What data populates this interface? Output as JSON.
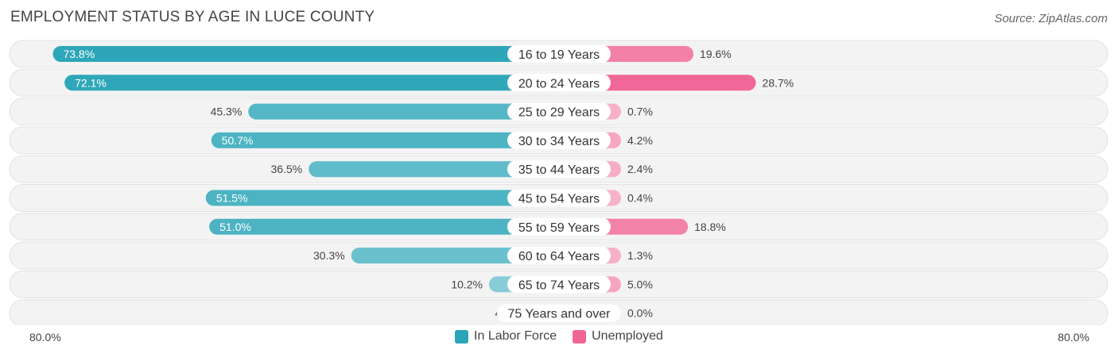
{
  "header": {
    "title": "EMPLOYMENT STATUS BY AGE IN LUCE COUNTY",
    "source": "Source: ZipAtlas.com"
  },
  "axis": {
    "left_label": "80.0%",
    "right_label": "80.0%"
  },
  "legend": {
    "items": [
      {
        "label": "In Labor Force",
        "color": "#2ba5b8"
      },
      {
        "label": "Unemployed",
        "color": "#f06595"
      }
    ]
  },
  "chart_data": {
    "type": "bar",
    "orientation": "diverging-horizontal",
    "title": "EMPLOYMENT STATUS BY AGE IN LUCE COUNTY",
    "xlim": [
      -80,
      80
    ],
    "categories": [
      "16 to 19 Years",
      "20 to 24 Years",
      "25 to 29 Years",
      "30 to 34 Years",
      "35 to 44 Years",
      "45 to 54 Years",
      "55 to 59 Years",
      "60 to 64 Years",
      "65 to 74 Years",
      "75 Years and over"
    ],
    "series": [
      {
        "name": "In Labor Force",
        "side": "left",
        "color": "#2ba5b8",
        "values": [
          73.8,
          72.1,
          45.3,
          50.7,
          36.5,
          51.5,
          51.0,
          30.3,
          10.2,
          4.7
        ],
        "labels": [
          "73.8%",
          "72.1%",
          "45.3%",
          "50.7%",
          "36.5%",
          "51.5%",
          "51.0%",
          "30.3%",
          "10.2%",
          "4.7%"
        ]
      },
      {
        "name": "Unemployed",
        "side": "right",
        "color": "#f06595",
        "values": [
          19.6,
          28.7,
          0.7,
          4.2,
          2.4,
          0.4,
          18.8,
          1.3,
          5.0,
          0.0
        ],
        "labels": [
          "19.6%",
          "28.7%",
          "0.7%",
          "4.2%",
          "2.4%",
          "0.4%",
          "18.8%",
          "1.3%",
          "5.0%",
          "0.0%"
        ]
      }
    ]
  }
}
